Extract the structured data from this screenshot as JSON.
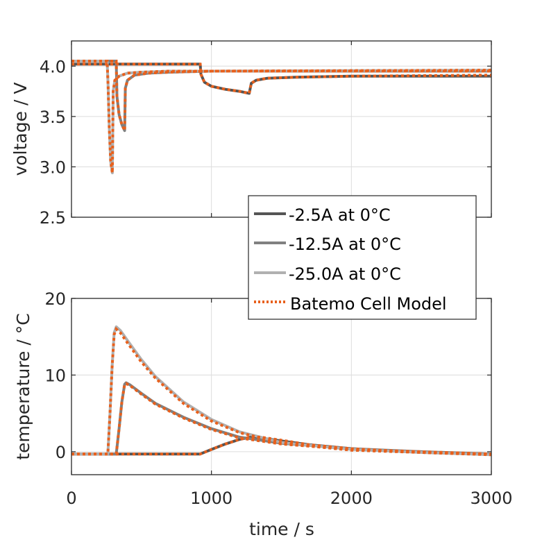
{
  "chart_data": [
    {
      "type": "line",
      "ylabel": "voltage / V",
      "xlim": [
        0,
        3000
      ],
      "ylim": [
        2.5,
        4.25
      ],
      "yticks": [
        "2.5",
        "3.0",
        "3.5",
        "4.0"
      ],
      "ytick_values": [
        2.5,
        3.0,
        3.5,
        4.0
      ],
      "xtick_values": [
        0,
        1000,
        2000,
        3000
      ],
      "grid": true,
      "series": [
        {
          "name": "-2.5A at 0°C",
          "color": "#555555",
          "style": "solid",
          "x": [
            0,
            920,
            925,
            950,
            1000,
            1100,
            1200,
            1270,
            1285,
            1320,
            1400,
            1600,
            2000,
            3000
          ],
          "y": [
            4.02,
            4.02,
            3.92,
            3.84,
            3.8,
            3.77,
            3.75,
            3.73,
            3.83,
            3.86,
            3.88,
            3.89,
            3.9,
            3.9
          ]
        },
        {
          "name": "-12.5A at 0°C",
          "color": "#808080",
          "style": "solid",
          "x": [
            0,
            320,
            325,
            340,
            360,
            380,
            385,
            400,
            450,
            550,
            700,
            1000,
            3000
          ],
          "y": [
            4.05,
            4.05,
            3.7,
            3.52,
            3.42,
            3.36,
            3.78,
            3.86,
            3.91,
            3.93,
            3.94,
            3.95,
            3.95
          ]
        },
        {
          "name": "-25.0A at 0°C",
          "color": "#b0b0b0",
          "style": "solid",
          "x": [
            0,
            255,
            262,
            270,
            280,
            292,
            298,
            310,
            340,
            400,
            500,
            700,
            1000,
            3000
          ],
          "y": [
            4.05,
            4.05,
            3.8,
            3.4,
            3.05,
            2.94,
            3.75,
            3.86,
            3.9,
            3.93,
            3.94,
            3.95,
            3.95,
            3.96
          ]
        },
        {
          "name": "Batemo Cell Model",
          "color": "#e8601c",
          "style": "dotted",
          "x": [
            0,
            255,
            262,
            270,
            280,
            292,
            298,
            310,
            340,
            400,
            500,
            700,
            1000,
            3000
          ],
          "y": [
            4.05,
            4.05,
            3.8,
            3.4,
            3.05,
            2.94,
            3.75,
            3.86,
            3.9,
            3.93,
            3.94,
            3.95,
            3.95,
            3.96
          ]
        }
      ]
    },
    {
      "type": "line",
      "ylabel": "temperature / °C",
      "xlabel": "time / s",
      "xlim": [
        0,
        3000
      ],
      "ylim": [
        -3,
        20
      ],
      "yticks": [
        "0",
        "10",
        "20"
      ],
      "ytick_values": [
        0,
        10,
        20
      ],
      "xticks": [
        "0",
        "1000",
        "2000",
        "3000"
      ],
      "xtick_values": [
        0,
        1000,
        2000,
        3000
      ],
      "grid": true,
      "series": [
        {
          "name": "-2.5A at 0°C",
          "color": "#555555",
          "style": "solid",
          "x": [
            0,
            920,
            1000,
            1100,
            1200,
            1280,
            1350,
            1500,
            1700,
            2000,
            2400,
            3000
          ],
          "y": [
            -0.3,
            -0.3,
            0.3,
            1.0,
            1.6,
            1.9,
            1.8,
            1.4,
            0.9,
            0.4,
            0.0,
            -0.3
          ]
        },
        {
          "name": "-12.5A at 0°C",
          "color": "#808080",
          "style": "solid",
          "x": [
            0,
            320,
            340,
            360,
            380,
            390,
            420,
            500,
            600,
            800,
            1000,
            1200,
            1500,
            2000,
            2500,
            3000
          ],
          "y": [
            -0.3,
            -0.3,
            3.0,
            6.5,
            8.8,
            9.0,
            8.7,
            7.6,
            6.3,
            4.5,
            3.0,
            1.9,
            1.1,
            0.4,
            0.0,
            -0.3
          ]
        },
        {
          "name": "-25.0A at 0°C",
          "color": "#b0b0b0",
          "style": "solid",
          "x": [
            0,
            260,
            275,
            290,
            305,
            320,
            350,
            400,
            500,
            600,
            800,
            1000,
            1200,
            1500,
            2000,
            2500,
            3000
          ],
          "y": [
            -0.3,
            -0.3,
            5.0,
            11.0,
            15.5,
            16.3,
            15.8,
            14.5,
            12.0,
            9.8,
            6.5,
            4.2,
            2.6,
            1.2,
            0.3,
            -0.1,
            -0.4
          ]
        },
        {
          "name": "Batemo Cell Model",
          "color": "#e8601c",
          "style": "dotted",
          "x": [
            0,
            260,
            275,
            290,
            305,
            320,
            350,
            400,
            500,
            600,
            800,
            1000,
            1200,
            1500,
            2000,
            2500,
            3000
          ],
          "y": [
            -0.3,
            -0.3,
            5.0,
            11.0,
            15.3,
            16.0,
            15.5,
            14.2,
            11.7,
            9.6,
            6.3,
            4.0,
            2.5,
            1.1,
            0.2,
            -0.1,
            -0.4
          ]
        }
      ]
    }
  ],
  "extra_model": {
    "top": [
      {
        "x": [
          0,
          920,
          925,
          950,
          1000,
          1100,
          1200,
          1270,
          1285,
          1320,
          1400,
          1600,
          2000,
          3000
        ],
        "y": [
          4.02,
          4.02,
          3.92,
          3.84,
          3.8,
          3.77,
          3.75,
          3.73,
          3.83,
          3.86,
          3.88,
          3.89,
          3.9,
          3.91
        ]
      },
      {
        "x": [
          0,
          320,
          325,
          340,
          360,
          380,
          385,
          400,
          450,
          550,
          700,
          1000,
          3000
        ],
        "y": [
          4.05,
          4.05,
          3.7,
          3.52,
          3.42,
          3.36,
          3.78,
          3.86,
          3.91,
          3.93,
          3.94,
          3.95,
          3.95
        ]
      }
    ],
    "bottom": [
      {
        "x": [
          0,
          920,
          1000,
          1100,
          1200,
          1280,
          1350,
          1500,
          1700,
          2000,
          2400,
          3000
        ],
        "y": [
          -0.3,
          -0.3,
          0.3,
          1.0,
          1.6,
          1.9,
          1.9,
          1.5,
          0.9,
          0.4,
          0.0,
          -0.3
        ]
      },
      {
        "x": [
          0,
          320,
          340,
          360,
          380,
          390,
          420,
          500,
          600,
          800,
          1000,
          1200,
          1500,
          2000,
          2500,
          3000
        ],
        "y": [
          -0.3,
          -0.3,
          3.0,
          6.5,
          8.8,
          8.9,
          8.6,
          7.5,
          6.2,
          4.4,
          2.9,
          1.8,
          1.0,
          0.3,
          0.0,
          -0.3
        ]
      }
    ]
  },
  "legend": {
    "location": "between plots, right",
    "entries": [
      "-2.5A at 0°C",
      "-12.5A at 0°C",
      "-25.0A at 0°C",
      "Batemo Cell Model"
    ]
  }
}
